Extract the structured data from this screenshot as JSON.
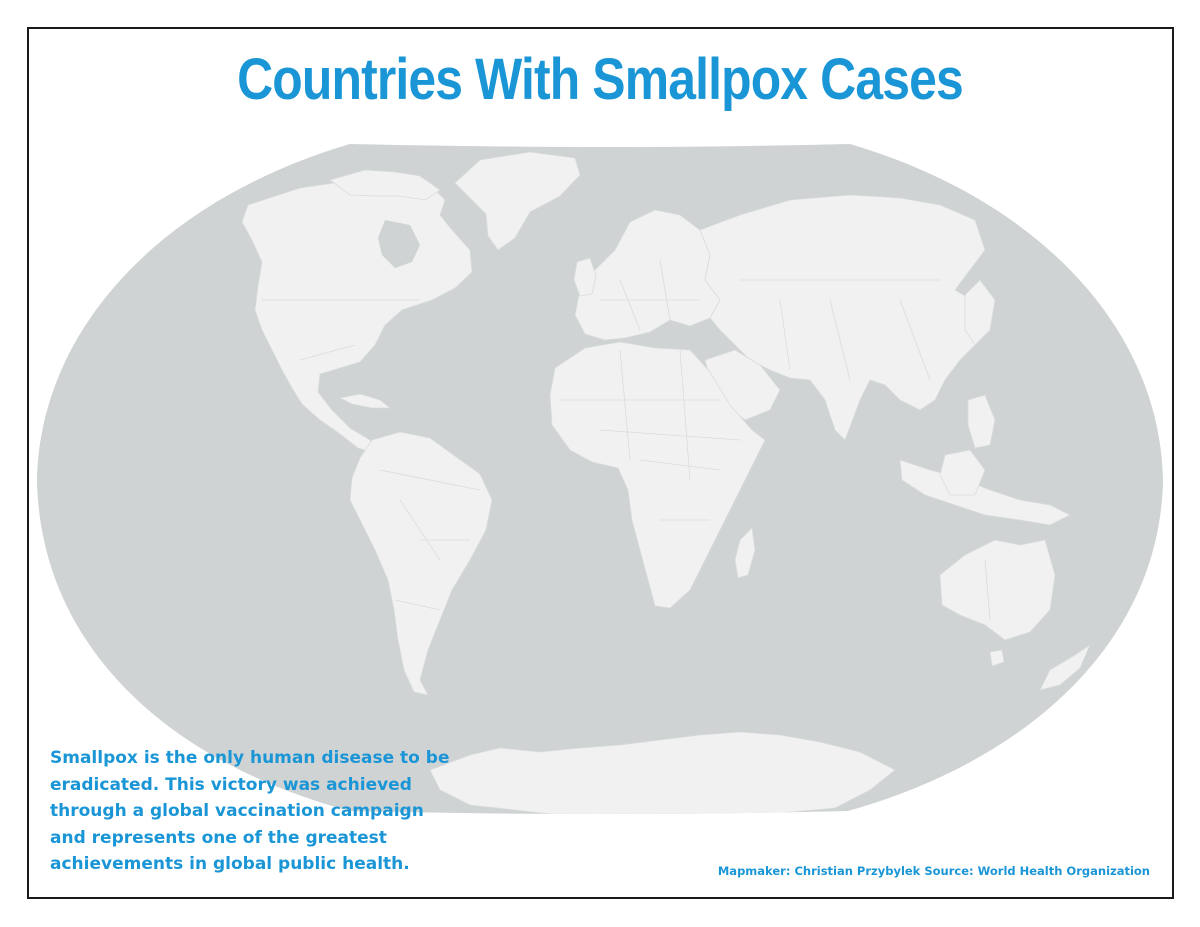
{
  "map": {
    "title": "Countries With Smallpox Cases",
    "description_lines": [
      "Smallpox is the only human disease to be",
      "eradicated. This victory was achieved",
      "through a global vaccination campaign",
      "and represents one of the greatest",
      "achievements in global public health."
    ],
    "credit": "Mapmaker: Christian Przybylek Source: World Health Organization",
    "projection": "Winkel Tripel",
    "colors": {
      "ocean": "#cfd3d4",
      "land": "#f1f1f1",
      "borders": "#d9dcdd",
      "text": "#1a96d6",
      "frame": "#1a1a1a"
    }
  }
}
